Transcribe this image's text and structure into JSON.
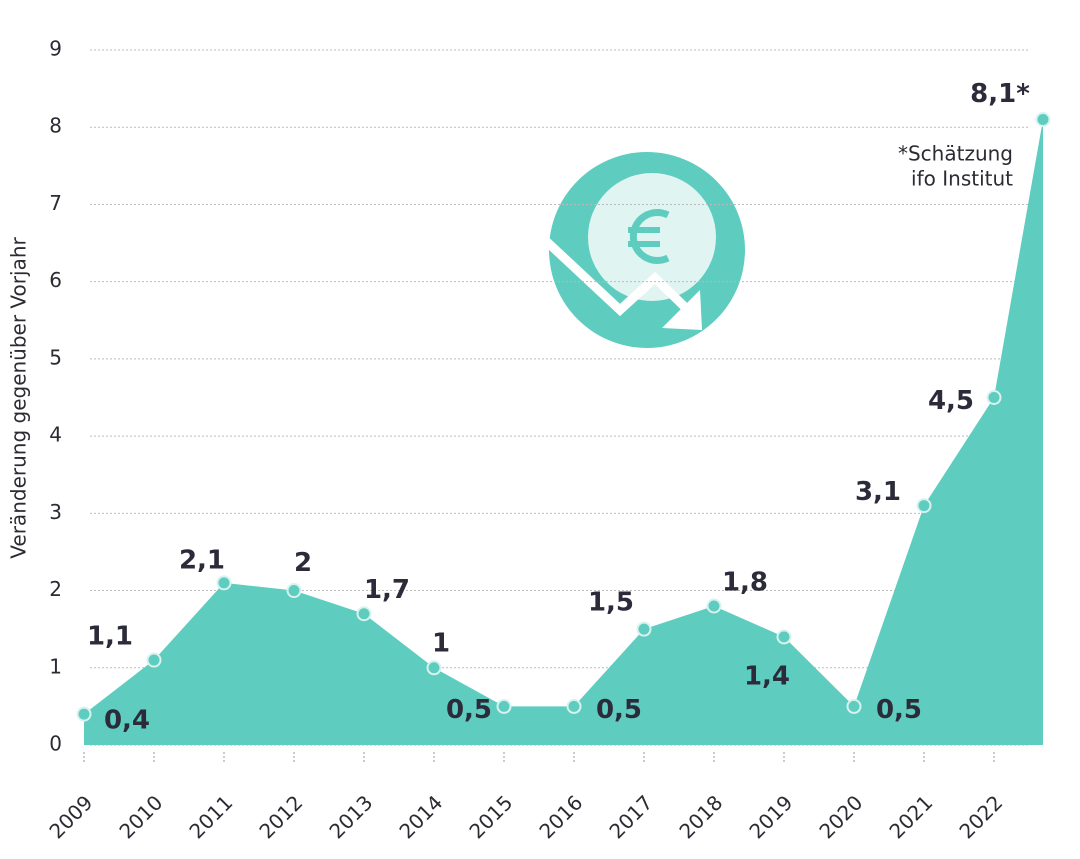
{
  "chart_data": {
    "type": "area",
    "y_label": "Veränderung gegenüber Vorjahr",
    "categories": [
      "2009",
      "2010",
      "2011",
      "2012",
      "2013",
      "2014",
      "2015",
      "2016",
      "2017",
      "2018",
      "2019",
      "2020",
      "2021",
      "2022",
      null
    ],
    "values": [
      0.4,
      1.1,
      2.1,
      2,
      1.7,
      1,
      0.5,
      0.5,
      1.5,
      1.8,
      1.4,
      0.5,
      3.1,
      4.5,
      8.1
    ],
    "value_labels": [
      "0,4",
      "1,1",
      "2,1",
      "2",
      "1,7",
      "1",
      "0,5",
      "0,5",
      "1,5",
      "1,8",
      "1,4",
      "0,5",
      "3,1",
      "4,5",
      "8,1*"
    ],
    "color": "#5ecdc0",
    "annotation": [
      "*Schätzung",
      "ifo Institut"
    ],
    "ylim": [
      0,
      9
    ],
    "yticks": [
      0,
      1,
      2,
      3,
      4,
      5,
      6,
      7,
      8,
      9
    ],
    "grid": true
  }
}
